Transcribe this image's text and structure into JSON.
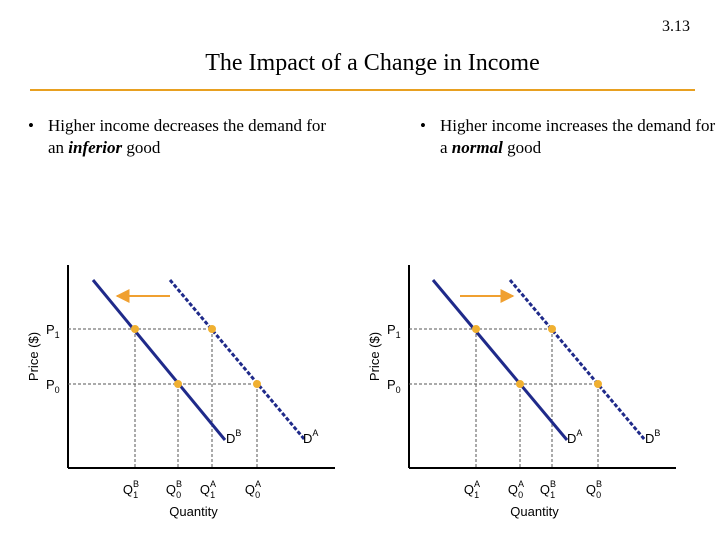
{
  "slide_number": "3.13",
  "title": "The Impact of a Change in Income",
  "bullets": {
    "left": {
      "pre": "Higher income decreases the demand for an ",
      "emph": "inferior",
      "post": " good"
    },
    "right": {
      "pre": "Higher income increases the demand for a ",
      "emph": "normal",
      "post": " good"
    }
  },
  "colors": {
    "demand_line": "#1f2a8a",
    "arrow": "#f0a030",
    "point": "#f0b030",
    "title_rule": "#e8a020"
  },
  "chart_data": [
    {
      "type": "line",
      "title": "",
      "xlabel": "Quantity",
      "ylabel": "Price ($)",
      "shift": "left",
      "series": [
        {
          "name": "DA",
          "base": "D",
          "sup": "A",
          "style": "dashed",
          "points": [
            [
              "Q1A",
              "P1"
            ],
            [
              "Q0A",
              "P0"
            ]
          ]
        },
        {
          "name": "DB",
          "base": "D",
          "sup": "B",
          "style": "solid",
          "points": [
            [
              "Q1B",
              "P1"
            ],
            [
              "Q0B",
              "P0"
            ]
          ]
        }
      ],
      "yticks": [
        {
          "id": "P1",
          "base": "P",
          "sub": "1"
        },
        {
          "id": "P0",
          "base": "P",
          "sub": "0"
        }
      ],
      "xticks": [
        {
          "id": "Q1B",
          "base": "Q",
          "sub": "1",
          "sup": "B"
        },
        {
          "id": "Q0B",
          "base": "Q",
          "sub": "0",
          "sup": "B"
        },
        {
          "id": "Q1A",
          "base": "Q",
          "sub": "1",
          "sup": "A"
        },
        {
          "id": "Q0A",
          "base": "Q",
          "sub": "0",
          "sup": "A"
        }
      ]
    },
    {
      "type": "line",
      "title": "",
      "xlabel": "Quantity",
      "ylabel": "Price ($)",
      "shift": "right",
      "series": [
        {
          "name": "DA",
          "base": "D",
          "sup": "A",
          "style": "solid",
          "points": [
            [
              "Q1A",
              "P1"
            ],
            [
              "Q0A",
              "P0"
            ]
          ]
        },
        {
          "name": "DB",
          "base": "D",
          "sup": "B",
          "style": "dashed",
          "points": [
            [
              "Q1B",
              "P1"
            ],
            [
              "Q0B",
              "P0"
            ]
          ]
        }
      ],
      "yticks": [
        {
          "id": "P1",
          "base": "P",
          "sub": "1"
        },
        {
          "id": "P0",
          "base": "P",
          "sub": "0"
        }
      ],
      "xticks": [
        {
          "id": "Q1A",
          "base": "Q",
          "sub": "1",
          "sup": "A"
        },
        {
          "id": "Q0A",
          "base": "Q",
          "sub": "0",
          "sup": "A"
        },
        {
          "id": "Q1B",
          "base": "Q",
          "sub": "1",
          "sup": "B"
        },
        {
          "id": "Q0B",
          "base": "Q",
          "sub": "0",
          "sup": "B"
        }
      ]
    }
  ]
}
